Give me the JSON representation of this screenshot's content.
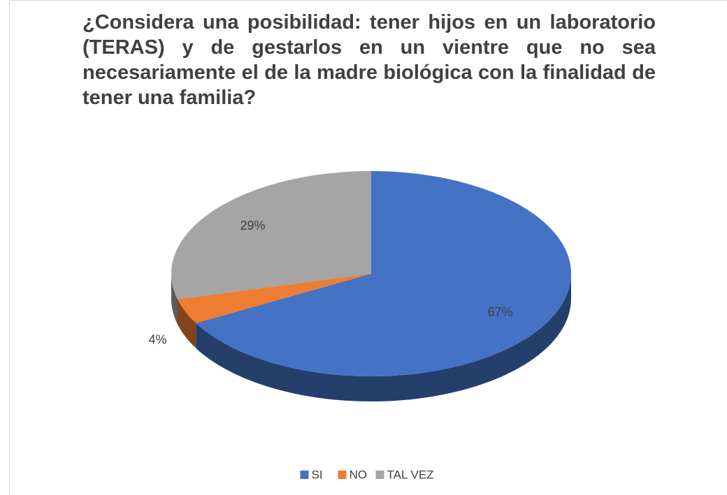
{
  "chart_data": {
    "type": "pie",
    "title": "¿Considera una posibilidad: tener hijos en un laboratorio (TERAS) y de gestarlos en un vientre que no sea necesariamente el de la madre biológica con la finalidad de tener una familia?",
    "categories": [
      "SI",
      "NO",
      "TAL VEZ"
    ],
    "values": [
      67,
      4,
      29
    ],
    "value_labels": [
      "67%",
      "4%",
      "29%"
    ],
    "colors": [
      "#4472c4",
      "#ed7d31",
      "#a5a5a5"
    ],
    "legend": "bottom"
  }
}
